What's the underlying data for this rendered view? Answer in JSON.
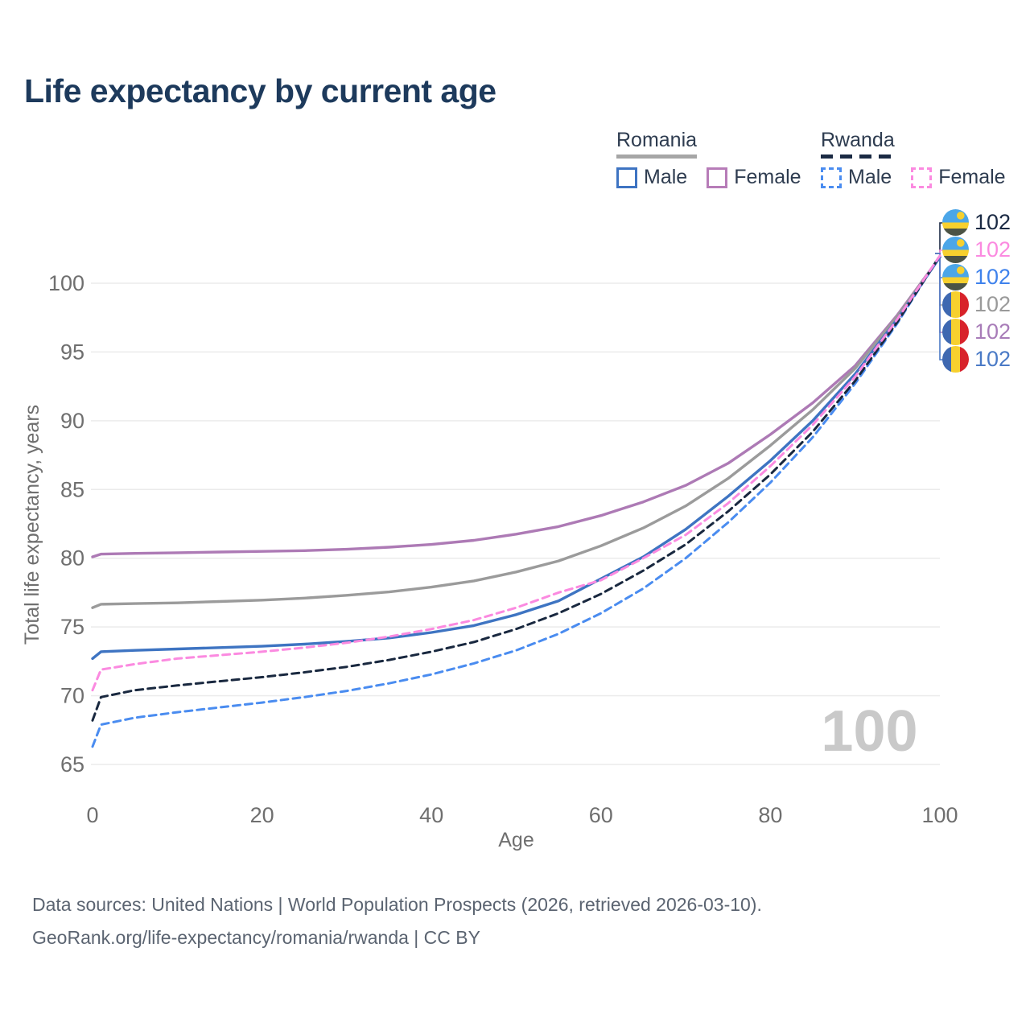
{
  "title": "Life expectancy by current age",
  "watermark": "100",
  "legend": {
    "groups": [
      {
        "label": "Romania",
        "underline_style": "solid",
        "underline_color": "#a6a6a6",
        "items": [
          {
            "label": "Male",
            "color": "#3e74c2",
            "dashed": false
          },
          {
            "label": "Female",
            "color": "#b77cb8",
            "dashed": false
          }
        ]
      },
      {
        "label": "Rwanda",
        "underline_style": "dashed",
        "underline_color": "#1b2a44",
        "items": [
          {
            "label": "Male",
            "color": "#4a8cf0",
            "dashed": true
          },
          {
            "label": "Female",
            "color": "#fb8ae0",
            "dashed": true
          }
        ]
      }
    ]
  },
  "end_labels": [
    {
      "series": "Rwanda Both sexes",
      "value": "102",
      "color": "#1b2a44",
      "flag": "rwanda"
    },
    {
      "series": "Rwanda Female",
      "value": "102",
      "color": "#fb8ae0",
      "flag": "rwanda"
    },
    {
      "series": "Rwanda Male",
      "value": "102",
      "color": "#3f82ec",
      "flag": "rwanda"
    },
    {
      "series": "Romania Both sexes",
      "value": "102",
      "color": "#9a9a9a",
      "flag": "romania"
    },
    {
      "series": "Romania Female",
      "value": "102",
      "color": "#a87cb8",
      "flag": "romania"
    },
    {
      "series": "Romania Male",
      "value": "102",
      "color": "#4a7ac6",
      "flag": "romania"
    }
  ],
  "footer": {
    "line1": "Data sources: United Nations | World Population Prospects (2026, retrieved 2026-03-10).",
    "line2": "GeoRank.org/life-expectancy/romania/rwanda | CC BY"
  },
  "chart_data": {
    "type": "line",
    "title": "Life expectancy by current age",
    "xlabel": "Age",
    "ylabel": "Total life expectancy, years",
    "xlim": [
      0,
      100
    ],
    "ylim": [
      64.5,
      103
    ],
    "x_ticks": [
      0,
      20,
      40,
      60,
      80,
      100
    ],
    "y_ticks": [
      65,
      70,
      75,
      80,
      85,
      90,
      95,
      100
    ],
    "grid": true,
    "legend_position": "top-right",
    "x": [
      0,
      1,
      5,
      10,
      15,
      20,
      25,
      30,
      35,
      40,
      45,
      50,
      55,
      60,
      65,
      70,
      75,
      80,
      85,
      90,
      95,
      100
    ],
    "series": [
      {
        "name": "Romania Female",
        "country": "Romania",
        "sex": "female",
        "color": "#ad7ab5",
        "dashed": false,
        "values": [
          80.1,
          80.3,
          80.35,
          80.4,
          80.45,
          80.5,
          80.55,
          80.65,
          80.8,
          81.0,
          81.3,
          81.75,
          82.3,
          83.1,
          84.1,
          85.3,
          86.9,
          89.0,
          91.3,
          94.0,
          97.7,
          101.9
        ]
      },
      {
        "name": "Romania Both sexes",
        "country": "Romania",
        "sex": "both",
        "color": "#9b9b9b",
        "dashed": false,
        "values": [
          76.4,
          76.65,
          76.7,
          76.75,
          76.85,
          76.95,
          77.1,
          77.3,
          77.55,
          77.9,
          78.35,
          79.0,
          79.8,
          80.9,
          82.2,
          83.8,
          85.8,
          88.2,
          90.8,
          93.8,
          97.6,
          101.9
        ]
      },
      {
        "name": "Romania Male",
        "country": "Romania",
        "sex": "male",
        "color": "#3e74c2",
        "dashed": false,
        "values": [
          72.7,
          73.2,
          73.3,
          73.4,
          73.5,
          73.6,
          73.75,
          73.95,
          74.2,
          74.6,
          75.1,
          75.9,
          76.9,
          78.5,
          80.1,
          82.1,
          84.5,
          87.1,
          90.0,
          93.4,
          97.4,
          101.9
        ]
      },
      {
        "name": "Rwanda Male",
        "country": "Rwanda",
        "sex": "male",
        "color": "#4a8cf0",
        "dashed": true,
        "values": [
          66.3,
          67.9,
          68.4,
          68.8,
          69.15,
          69.5,
          69.9,
          70.35,
          70.9,
          71.55,
          72.35,
          73.3,
          74.5,
          76.0,
          77.8,
          80.0,
          82.6,
          85.5,
          88.8,
          92.7,
          97.1,
          102.0
        ]
      },
      {
        "name": "Rwanda Both sexes",
        "country": "Rwanda",
        "sex": "both",
        "color": "#19283f",
        "dashed": true,
        "values": [
          68.2,
          69.9,
          70.4,
          70.75,
          71.05,
          71.35,
          71.7,
          72.1,
          72.6,
          73.2,
          73.9,
          74.85,
          76.0,
          77.4,
          79.1,
          81.0,
          83.4,
          86.1,
          89.2,
          92.9,
          97.2,
          102.0
        ]
      },
      {
        "name": "Rwanda Female",
        "country": "Rwanda",
        "sex": "female",
        "color": "#fb8ae0",
        "dashed": true,
        "values": [
          70.4,
          71.9,
          72.3,
          72.7,
          72.95,
          73.2,
          73.5,
          73.85,
          74.3,
          74.85,
          75.5,
          76.4,
          77.5,
          78.4,
          80.0,
          81.7,
          84.0,
          86.7,
          89.7,
          93.2,
          97.4,
          102.0
        ]
      }
    ]
  }
}
